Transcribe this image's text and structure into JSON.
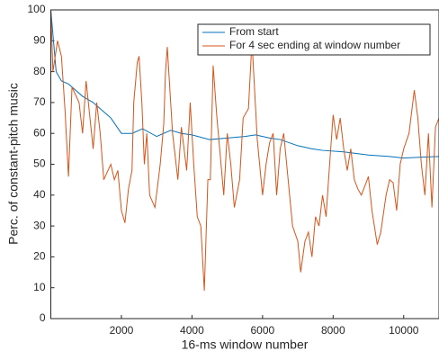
{
  "chart_data": {
    "type": "line",
    "xlabel": "16-ms window number",
    "ylabel": "Perc. of constant-pitch music",
    "xlim": [
      0,
      11000
    ],
    "ylim": [
      0,
      100
    ],
    "xticks": [
      2000,
      4000,
      6000,
      8000,
      10000
    ],
    "yticks": [
      0,
      10,
      20,
      30,
      40,
      50,
      60,
      70,
      80,
      90,
      100
    ],
    "legend": "top-right",
    "series": [
      {
        "name": "From start",
        "color": "#0072BD",
        "x": [
          0,
          150,
          300,
          500,
          700,
          900,
          1200,
          1500,
          1700,
          2000,
          2300,
          2600,
          3000,
          3400,
          3700,
          4000,
          4500,
          5000,
          5500,
          5800,
          6200,
          6500,
          7000,
          7400,
          7700,
          8300,
          9000,
          9600,
          10000,
          10500,
          11000
        ],
        "values": [
          100,
          80,
          77,
          76,
          74,
          72,
          70,
          67,
          65,
          60,
          60,
          61.5,
          59,
          61,
          60,
          59.5,
          58,
          58.5,
          59,
          59.5,
          58.5,
          58,
          56,
          55,
          54.5,
          54,
          53,
          52.5,
          52,
          52.3,
          52.5
        ]
      },
      {
        "name": "For 4 sec ending at window number",
        "color": "#D95319",
        "x": [
          0,
          60,
          190,
          300,
          400,
          500,
          600,
          800,
          900,
          1000,
          1200,
          1300,
          1400,
          1500,
          1700,
          1800,
          1900,
          2000,
          2100,
          2200,
          2300,
          2350,
          2450,
          2500,
          2580,
          2650,
          2720,
          2800,
          2950,
          3100,
          3200,
          3250,
          3300,
          3450,
          3600,
          3700,
          3850,
          3950,
          4050,
          4150,
          4250,
          4350,
          4450,
          4520,
          4600,
          4700,
          4900,
          5000,
          5100,
          5200,
          5350,
          5450,
          5600,
          5700,
          5850,
          6000,
          6100,
          6200,
          6300,
          6400,
          6500,
          6600,
          6700,
          6850,
          7000,
          7080,
          7200,
          7300,
          7400,
          7500,
          7600,
          7700,
          7800,
          7900,
          8000,
          8100,
          8200,
          8300,
          8400,
          8500,
          8600,
          8700,
          8800,
          9000,
          9100,
          9250,
          9350,
          9500,
          9600,
          9700,
          9800,
          9900,
          10000,
          10150,
          10300,
          10400,
          10500,
          10600,
          10700,
          10800,
          10900,
          11000
        ],
        "values": [
          100,
          80,
          90,
          85,
          68,
          46,
          75,
          70,
          60,
          77,
          55,
          70,
          60,
          45,
          50,
          45,
          48,
          35,
          31,
          42,
          48,
          70,
          83,
          85,
          70,
          50,
          60,
          40,
          36,
          50,
          63,
          80,
          88,
          60,
          45,
          62,
          48,
          70,
          50,
          33,
          30,
          9,
          45,
          45,
          82,
          66,
          40,
          60,
          50,
          36,
          45,
          65,
          68,
          90,
          58,
          40,
          50,
          57,
          60,
          40,
          55,
          60,
          48,
          30,
          25,
          15,
          25,
          28,
          20,
          33,
          30,
          40,
          33,
          50,
          66,
          58,
          65,
          55,
          48,
          55,
          45,
          42,
          40,
          46,
          35,
          24,
          28,
          40,
          45,
          44,
          35,
          50,
          55,
          60,
          74,
          65,
          50,
          40,
          60,
          36,
          62,
          65
        ]
      }
    ]
  }
}
